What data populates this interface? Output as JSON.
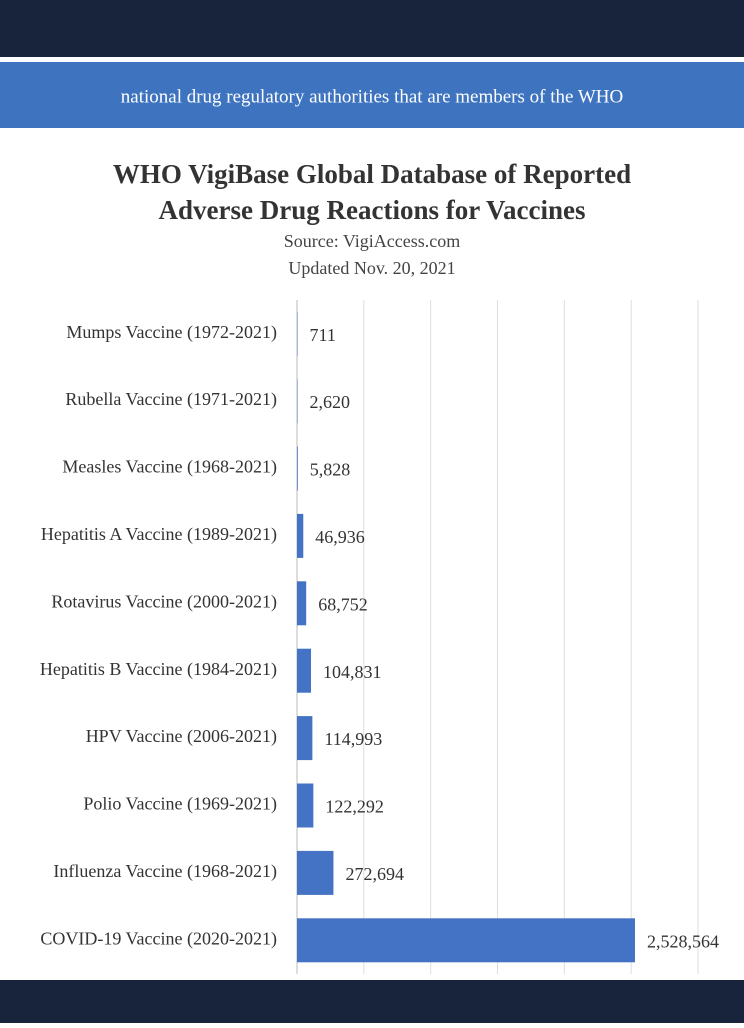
{
  "banner": "national drug regulatory authorities that are members of the WHO",
  "chart_data": {
    "type": "bar",
    "orientation": "horizontal",
    "title": "WHO VigiBase Global Database of Reported",
    "title_line2": "Adverse Drug Reactions for Vaccines",
    "subtitle": "Source: VigiAccess.com",
    "subtitle_line2": "Updated Nov. 20, 2021",
    "categories": [
      "Mumps Vaccine (1972-2021)",
      "Rubella Vaccine (1971-2021)",
      "Measles Vaccine (1968-2021)",
      "Hepatitis A Vaccine (1989-2021)",
      "Rotavirus Vaccine (2000-2021)",
      "Hepatitis B Vaccine (1984-2021)",
      "HPV Vaccine (2006-2021)",
      "Polio Vaccine (1969-2021)",
      "Influenza Vaccine (1968-2021)",
      "COVID-19 Vaccine (2020-2021)"
    ],
    "values": [
      711,
      2620,
      5828,
      46936,
      68752,
      104831,
      114993,
      122292,
      272694,
      2528564
    ],
    "value_labels": [
      "711",
      "2,620",
      "5,828",
      "46,936",
      "68,752",
      "104,831",
      "114,993",
      "122,292",
      "272,694",
      "2,528,564"
    ],
    "color": "#4472c4",
    "xlim": [
      0,
      3000000
    ],
    "xticks": [
      0,
      500000,
      1000000,
      1500000,
      2000000,
      2500000,
      3000000
    ],
    "tick_labels": false,
    "grid": true
  }
}
